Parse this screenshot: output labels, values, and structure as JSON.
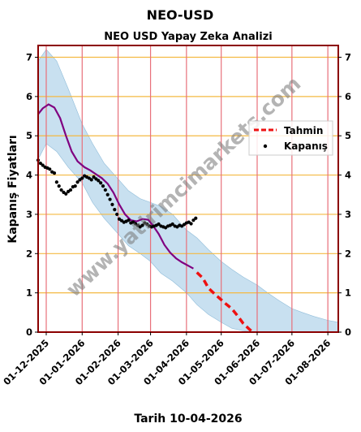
{
  "page_title": "NEO-USD",
  "footer_text": "Tarih 10-04-2026",
  "watermark": "www.yatirimcimarkets.com",
  "colors": {
    "frame": "#8b0000",
    "band": "#b0d3ea",
    "history_line": "#800080",
    "forecast_line": "#ee1111",
    "close_points": "#000000",
    "grid_h": "#f4b942",
    "grid_v": "#e8707a"
  },
  "chart_data": {
    "type": "line",
    "title": "NEO USD Yapay Zeka Analizi",
    "xlabel": "",
    "ylabel": "Kapanış Fiyatları",
    "x_is_date": true,
    "xlim": [
      "2025-11-24",
      "2026-08-10"
    ],
    "ylim": [
      0,
      7.3
    ],
    "yticks": [
      0,
      1,
      2,
      3,
      4,
      5,
      6,
      7
    ],
    "ytick_labels": [
      "0",
      "1",
      "2",
      "3",
      "4",
      "5",
      "6",
      "7"
    ],
    "xticks": [
      "2025-12-01",
      "2026-01-01",
      "2026-02-01",
      "2026-03-01",
      "2026-04-01",
      "2026-05-01",
      "2026-06-01",
      "2026-07-01",
      "2026-08-01"
    ],
    "xtick_labels": [
      "01-12-2025",
      "01-01-2026",
      "01-02-2026",
      "01-03-2026",
      "01-04-2026",
      "01-05-2026",
      "01-06-2026",
      "01-07-2026",
      "01-08-2026"
    ],
    "grid": true,
    "right_axis": true,
    "legend": {
      "position": "right",
      "entries": [
        {
          "label": "Tahmin",
          "style": "dashed-line"
        },
        {
          "label": "Kapanış",
          "style": "dot"
        }
      ]
    },
    "band": {
      "x": [
        "2025-11-24",
        "2025-12-01",
        "2025-12-10",
        "2025-12-20",
        "2026-01-01",
        "2026-01-10",
        "2026-01-20",
        "2026-02-01",
        "2026-02-10",
        "2026-02-20",
        "2026-03-01",
        "2026-03-10",
        "2026-03-20",
        "2026-04-01",
        "2026-04-10",
        "2026-04-20",
        "2026-05-01",
        "2026-05-10",
        "2026-05-20",
        "2026-06-01",
        "2026-06-10",
        "2026-06-20",
        "2026-07-01",
        "2026-07-10",
        "2026-07-20",
        "2026-08-01",
        "2026-08-10"
      ],
      "upper": [
        6.9,
        7.2,
        6.9,
        6.2,
        5.3,
        4.8,
        4.3,
        3.9,
        3.6,
        3.4,
        3.3,
        3.2,
        3.0,
        2.6,
        2.4,
        2.1,
        1.8,
        1.6,
        1.4,
        1.2,
        1.0,
        0.8,
        0.6,
        0.5,
        0.4,
        0.3,
        0.25
      ],
      "lower": [
        4.4,
        4.8,
        4.6,
        4.2,
        3.8,
        3.3,
        2.9,
        2.5,
        2.2,
        2.0,
        1.8,
        1.5,
        1.3,
        1.0,
        0.7,
        0.45,
        0.25,
        0.1,
        0.03,
        0.0,
        0.0,
        0.0,
        0.0,
        0.0,
        0.0,
        0.0,
        0.0
      ]
    },
    "series": [
      {
        "name": "",
        "role": "model",
        "x": [
          "2025-11-24",
          "2025-11-28",
          "2025-12-03",
          "2025-12-08",
          "2025-12-13",
          "2025-12-18",
          "2025-12-23",
          "2025-12-28",
          "2026-01-03",
          "2026-01-08",
          "2026-01-13",
          "2026-01-18",
          "2026-01-23",
          "2026-01-28",
          "2026-02-02",
          "2026-02-07",
          "2026-02-12",
          "2026-02-17",
          "2026-02-22",
          "2026-02-27",
          "2026-03-03",
          "2026-03-08",
          "2026-03-13",
          "2026-03-18",
          "2026-03-23",
          "2026-03-28",
          "2026-04-02",
          "2026-04-07"
        ],
        "values": [
          5.55,
          5.7,
          5.8,
          5.72,
          5.45,
          5.0,
          4.6,
          4.35,
          4.2,
          4.12,
          4.02,
          3.92,
          3.78,
          3.55,
          3.25,
          3.0,
          2.85,
          2.82,
          2.88,
          2.86,
          2.72,
          2.5,
          2.22,
          2.02,
          1.88,
          1.78,
          1.7,
          1.62
        ]
      },
      {
        "name": "Tahmin",
        "role": "forecast",
        "x": [
          "2026-04-10",
          "2026-04-15",
          "2026-04-20",
          "2026-04-25",
          "2026-04-30",
          "2026-05-05",
          "2026-05-10",
          "2026-05-15",
          "2026-05-20",
          "2026-05-25",
          "2026-05-28"
        ],
        "values": [
          1.52,
          1.38,
          1.12,
          0.98,
          0.85,
          0.72,
          0.6,
          0.42,
          0.22,
          0.08,
          0.0
        ]
      },
      {
        "name": "Kapanış",
        "role": "close",
        "x": [
          "2025-11-24",
          "2025-11-26",
          "2025-11-28",
          "2025-11-30",
          "2025-12-02",
          "2025-12-04",
          "2025-12-06",
          "2025-12-08",
          "2025-12-10",
          "2025-12-12",
          "2025-12-14",
          "2025-12-16",
          "2025-12-18",
          "2025-12-20",
          "2025-12-22",
          "2025-12-24",
          "2025-12-26",
          "2025-12-28",
          "2025-12-30",
          "2026-01-01",
          "2026-01-03",
          "2026-01-05",
          "2026-01-07",
          "2026-01-09",
          "2026-01-11",
          "2026-01-13",
          "2026-01-15",
          "2026-01-17",
          "2026-01-19",
          "2026-01-21",
          "2026-01-23",
          "2026-01-25",
          "2026-01-27",
          "2026-01-29",
          "2026-01-31",
          "2026-02-02",
          "2026-02-04",
          "2026-02-06",
          "2026-02-08",
          "2026-02-10",
          "2026-02-12",
          "2026-02-14",
          "2026-02-16",
          "2026-02-18",
          "2026-02-20",
          "2026-02-22",
          "2026-02-24",
          "2026-02-26",
          "2026-02-28",
          "2026-03-02",
          "2026-03-04",
          "2026-03-06",
          "2026-03-08",
          "2026-03-10",
          "2026-03-12",
          "2026-03-14",
          "2026-03-16",
          "2026-03-18",
          "2026-03-20",
          "2026-03-22",
          "2026-03-24",
          "2026-03-26",
          "2026-03-28",
          "2026-03-30",
          "2026-04-01",
          "2026-04-03",
          "2026-04-05",
          "2026-04-07",
          "2026-04-09"
        ],
        "values": [
          4.38,
          4.3,
          4.25,
          4.2,
          4.18,
          4.15,
          4.08,
          4.05,
          3.82,
          3.72,
          3.62,
          3.56,
          3.52,
          3.58,
          3.62,
          3.7,
          3.72,
          3.82,
          3.88,
          3.92,
          3.98,
          3.95,
          3.92,
          3.88,
          3.95,
          3.9,
          3.86,
          3.8,
          3.72,
          3.62,
          3.5,
          3.38,
          3.25,
          3.12,
          3.0,
          2.88,
          2.84,
          2.8,
          2.82,
          2.85,
          2.78,
          2.8,
          2.76,
          2.72,
          2.68,
          2.72,
          2.78,
          2.75,
          2.7,
          2.68,
          2.7,
          2.72,
          2.75,
          2.7,
          2.68,
          2.66,
          2.7,
          2.72,
          2.75,
          2.7,
          2.68,
          2.72,
          2.7,
          2.74,
          2.78,
          2.8,
          2.76,
          2.85,
          2.9
        ]
      }
    ]
  }
}
